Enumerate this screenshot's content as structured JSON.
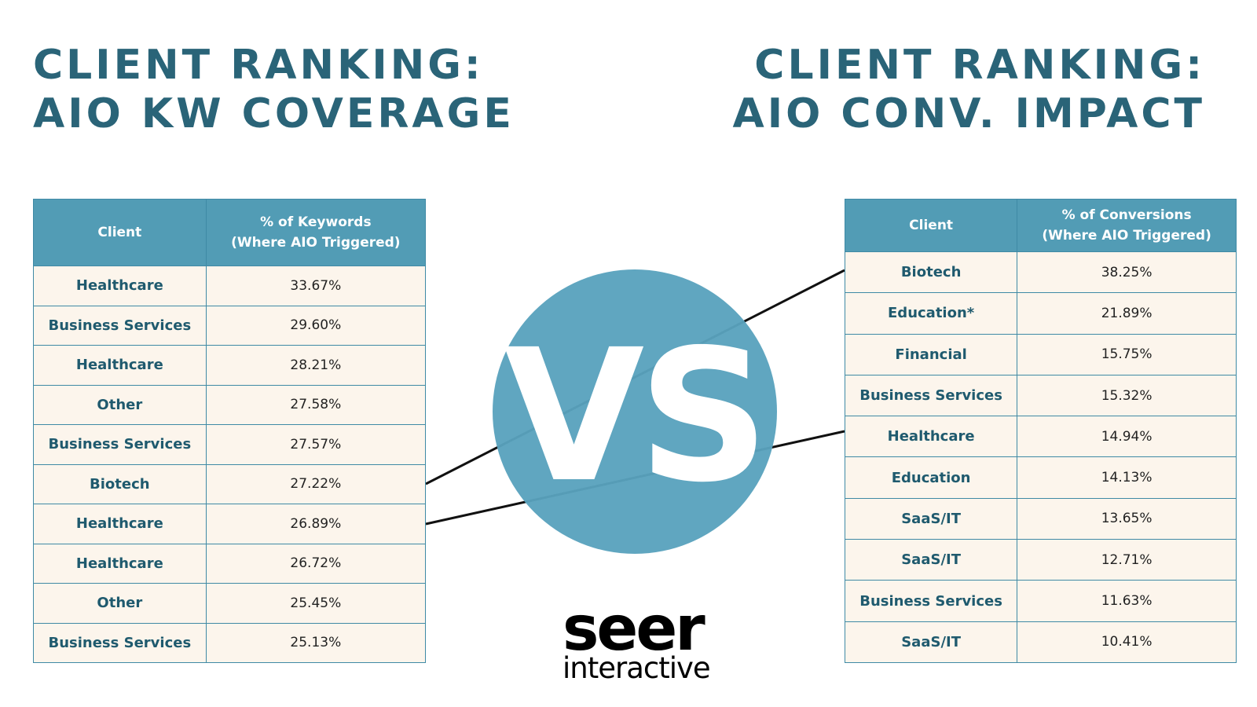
{
  "left": {
    "title": [
      "CLIENT RANKING:",
      "AIO KW COVERAGE"
    ],
    "table": {
      "header": [
        "Client",
        [
          "% of Keywords",
          "(Where AIO Triggered)"
        ]
      ],
      "rows": [
        [
          "Healthcare",
          "33.67%"
        ],
        [
          "Business Services",
          "29.60%"
        ],
        [
          "Healthcare",
          "28.21%"
        ],
        [
          "Other",
          "27.58%"
        ],
        [
          "Business Services",
          "27.57%"
        ],
        [
          "Biotech",
          "27.22%"
        ],
        [
          "Healthcare",
          "26.89%"
        ],
        [
          "Healthcare",
          "26.72%"
        ],
        [
          "Other",
          "25.45%"
        ],
        [
          "Business Services",
          "25.13%"
        ]
      ]
    }
  },
  "right": {
    "title": [
      "CLIENT RANKING:",
      "AIO CONV. IMPACT"
    ],
    "table": {
      "header": [
        "Client",
        [
          "% of Conversions",
          "(Where AIO Triggered)"
        ]
      ],
      "rows": [
        [
          "Biotech",
          "38.25%"
        ],
        [
          "Education*",
          "21.89%"
        ],
        [
          "Financial",
          "15.75%"
        ],
        [
          "Business Services",
          "15.32%"
        ],
        [
          "Healthcare",
          "14.94%"
        ],
        [
          "Education",
          "14.13%"
        ],
        [
          "SaaS/IT",
          "13.65%"
        ],
        [
          "SaaS/IT",
          "12.71%"
        ],
        [
          "Business Services",
          "11.63%"
        ],
        [
          "SaaS/IT",
          "10.41%"
        ]
      ]
    }
  },
  "vs": "VS",
  "logo": [
    "seer",
    "interactive"
  ]
}
